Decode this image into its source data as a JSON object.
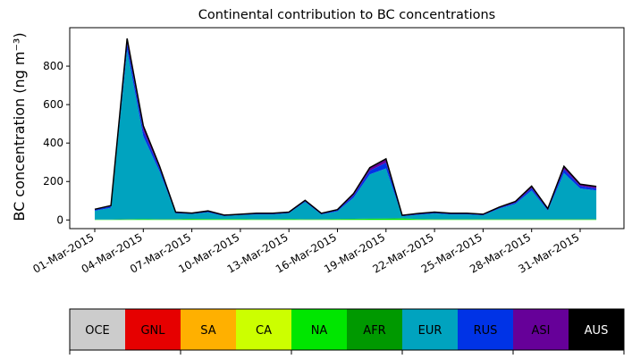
{
  "chart_data": {
    "type": "area",
    "title": "Continental contribution to BC concentrations",
    "ylabel": "BC concentration (ng m⁻³)",
    "xlabel": "",
    "x": [
      "01-Mar-2015",
      "02-Mar-2015",
      "03-Mar-2015",
      "04-Mar-2015",
      "05-Mar-2015",
      "06-Mar-2015",
      "07-Mar-2015",
      "08-Mar-2015",
      "09-Mar-2015",
      "10-Mar-2015",
      "11-Mar-2015",
      "12-Mar-2015",
      "13-Mar-2015",
      "14-Mar-2015",
      "15-Mar-2015",
      "16-Mar-2015",
      "17-Mar-2015",
      "18-Mar-2015",
      "19-Mar-2015",
      "20-Mar-2015",
      "21-Mar-2015",
      "22-Mar-2015",
      "23-Mar-2015",
      "24-Mar-2015",
      "25-Mar-2015",
      "26-Mar-2015",
      "27-Mar-2015",
      "28-Mar-2015",
      "29-Mar-2015",
      "30-Mar-2015",
      "31-Mar-2015",
      "01-Apr-2015"
    ],
    "xticks": [
      "01-Mar-2015",
      "04-Mar-2015",
      "07-Mar-2015",
      "10-Mar-2015",
      "13-Mar-2015",
      "16-Mar-2015",
      "19-Mar-2015",
      "22-Mar-2015",
      "25-Mar-2015",
      "28-Mar-2015",
      "31-Mar-2015"
    ],
    "yticks": [
      0,
      200,
      400,
      600,
      800
    ],
    "ylim": [
      -45,
      1000
    ],
    "grid": false,
    "legend_placement": "bottom colorbar",
    "series": [
      {
        "name": "OCE",
        "color": "#cccccc",
        "values": [
          0,
          0,
          0,
          0,
          0,
          0,
          0,
          0,
          0,
          0,
          0,
          0,
          0,
          0,
          0,
          0,
          0,
          0,
          0,
          0,
          0,
          0,
          0,
          0,
          0,
          0,
          0,
          0,
          0,
          0,
          0,
          0
        ]
      },
      {
        "name": "GNL",
        "color": "#e60000",
        "values": [
          0,
          0,
          0,
          0,
          0,
          0,
          0,
          0,
          0,
          0,
          0,
          0,
          0,
          0,
          0,
          0,
          0,
          0,
          0,
          0,
          0,
          0,
          0,
          0,
          0,
          0,
          0,
          0,
          0,
          0,
          0,
          0
        ]
      },
      {
        "name": "SA",
        "color": "#ffb000",
        "values": [
          0,
          0,
          0,
          0,
          0,
          0,
          0,
          0,
          0,
          0,
          0,
          0,
          0,
          0,
          0,
          0,
          0,
          0,
          0,
          0,
          0,
          0,
          0,
          0,
          0,
          0,
          0,
          0,
          0,
          0,
          0,
          0
        ]
      },
      {
        "name": "CA",
        "color": "#ccff00",
        "values": [
          0,
          0,
          0,
          0,
          0,
          0,
          0,
          0,
          0,
          0,
          0,
          0,
          0,
          0,
          0,
          0,
          0,
          0,
          0,
          0,
          0,
          0,
          0,
          0,
          0,
          0,
          0,
          0,
          0,
          0,
          0,
          0
        ]
      },
      {
        "name": "NA",
        "color": "#00e600",
        "values": [
          2,
          2,
          3,
          4,
          3,
          3,
          5,
          4,
          4,
          4,
          3,
          3,
          4,
          3,
          3,
          4,
          5,
          6,
          7,
          8,
          4,
          3,
          3,
          3,
          3,
          3,
          3,
          3,
          3,
          3,
          3,
          3
        ]
      },
      {
        "name": "AFR",
        "color": "#009900",
        "values": [
          1,
          1,
          1,
          1,
          1,
          1,
          1,
          1,
          1,
          1,
          1,
          1,
          1,
          1,
          1,
          1,
          1,
          1,
          1,
          1,
          1,
          1,
          1,
          1,
          1,
          1,
          1,
          1,
          1,
          1,
          1,
          1
        ]
      },
      {
        "name": "EUR",
        "color": "#00a3bf",
        "values": [
          45,
          60,
          880,
          430,
          250,
          30,
          25,
          35,
          15,
          20,
          25,
          25,
          30,
          90,
          25,
          40,
          110,
          230,
          260,
          10,
          22,
          30,
          25,
          25,
          20,
          55,
          80,
          150,
          45,
          240,
          160,
          150
        ]
      },
      {
        "name": "RUS",
        "color": "#0033e6",
        "values": [
          5,
          8,
          35,
          30,
          15,
          4,
          3,
          4,
          3,
          3,
          3,
          3,
          3,
          4,
          3,
          5,
          12,
          20,
          30,
          3,
          4,
          4,
          3,
          3,
          3,
          4,
          6,
          12,
          6,
          20,
          12,
          10
        ]
      },
      {
        "name": "ASI",
        "color": "#660099",
        "values": [
          3,
          4,
          25,
          25,
          12,
          3,
          2,
          3,
          2,
          2,
          3,
          3,
          3,
          4,
          3,
          4,
          10,
          15,
          20,
          2,
          3,
          3,
          3,
          3,
          3,
          4,
          6,
          10,
          4,
          15,
          10,
          10
        ]
      },
      {
        "name": "AUS",
        "color": "#000000",
        "values": [
          0,
          0,
          0,
          0,
          0,
          0,
          0,
          0,
          0,
          0,
          0,
          0,
          0,
          0,
          0,
          0,
          0,
          0,
          0,
          0,
          0,
          0,
          0,
          0,
          0,
          0,
          0,
          0,
          0,
          0,
          0,
          0
        ]
      }
    ]
  }
}
